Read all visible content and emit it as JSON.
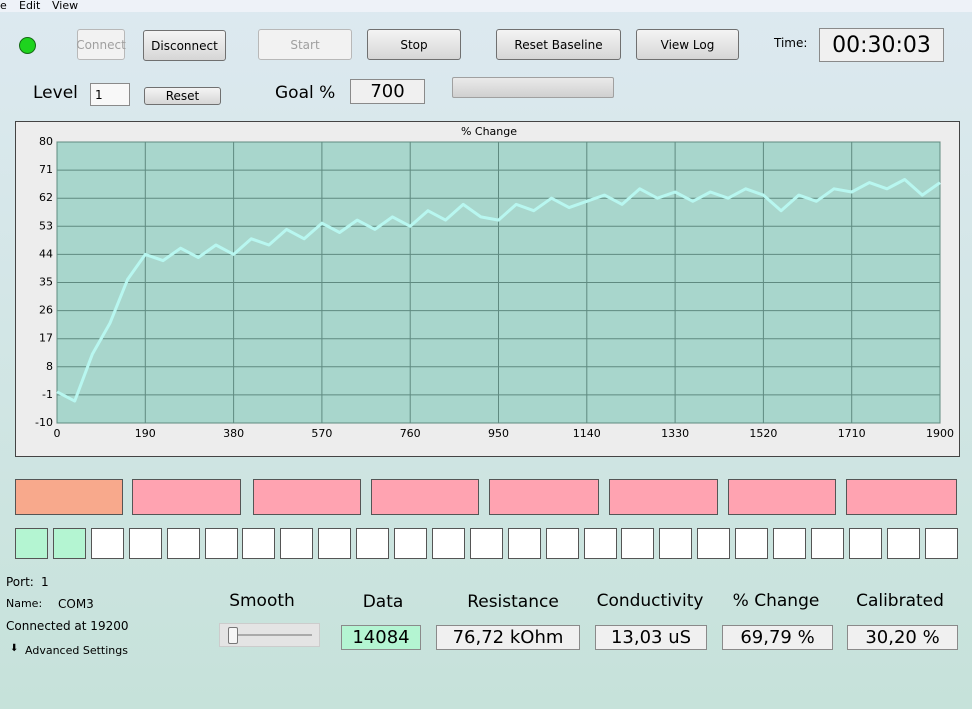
{
  "menu": [
    "e",
    "Edit",
    "View"
  ],
  "buttons": {
    "connect": "Connect",
    "disconnect": "Disconnect",
    "start": "Start",
    "stop": "Stop",
    "reset_baseline": "Reset Baseline",
    "view_log": "View Log"
  },
  "time": {
    "label": "Time:",
    "value": "00:30:03"
  },
  "level": {
    "label": "Level",
    "value": "1",
    "reset": "Reset"
  },
  "goal": {
    "label": "Goal %",
    "value": "700"
  },
  "chart_data": {
    "type": "line",
    "title": "% Change",
    "x": [
      0,
      38,
      76,
      114,
      152,
      190,
      228,
      266,
      304,
      342,
      380,
      418,
      456,
      494,
      532,
      570,
      608,
      646,
      684,
      722,
      760,
      798,
      836,
      874,
      912,
      950,
      988,
      1026,
      1064,
      1102,
      1140,
      1178,
      1216,
      1254,
      1292,
      1330,
      1368,
      1406,
      1444,
      1482,
      1520,
      1558,
      1596,
      1634,
      1672,
      1710,
      1748,
      1786,
      1824,
      1862,
      1900
    ],
    "values": [
      0,
      -3,
      12,
      22,
      36,
      44,
      42,
      46,
      43,
      47,
      44,
      49,
      47,
      52,
      49,
      54,
      51,
      55,
      52,
      56,
      53,
      58,
      55,
      60,
      56,
      55,
      60,
      58,
      62,
      59,
      61,
      63,
      60,
      65,
      62,
      64,
      61,
      64,
      62,
      65,
      63,
      58,
      63,
      61,
      65,
      64,
      67,
      65,
      68,
      63,
      67
    ],
    "color": "#b8f7f0",
    "xlim": [
      0,
      1900
    ],
    "ylim": [
      -10,
      80
    ],
    "xticks": [
      0,
      190,
      380,
      570,
      760,
      950,
      1140,
      1330,
      1520,
      1710,
      1900
    ],
    "yticks": [
      -10,
      -1,
      8,
      17,
      26,
      35,
      44,
      53,
      62,
      71,
      80
    ],
    "grid": true
  },
  "status": {
    "port_label": "Port:",
    "port": "1",
    "name_label": "Name:",
    "name": "COM3",
    "connected": "Connected at 19200",
    "advanced": "Advanced Settings"
  },
  "readouts": {
    "smooth": "Smooth",
    "data": {
      "label": "Data",
      "value": "14084"
    },
    "resistance": {
      "label": "Resistance",
      "value": "76,72 kOhm"
    },
    "conductivity": {
      "label": "Conductivity",
      "value": "13,03 uS"
    },
    "change": {
      "label": "% Change",
      "value": "69,79 %"
    },
    "calibrated": {
      "label": "Calibrated",
      "value": "30,20 %"
    }
  }
}
